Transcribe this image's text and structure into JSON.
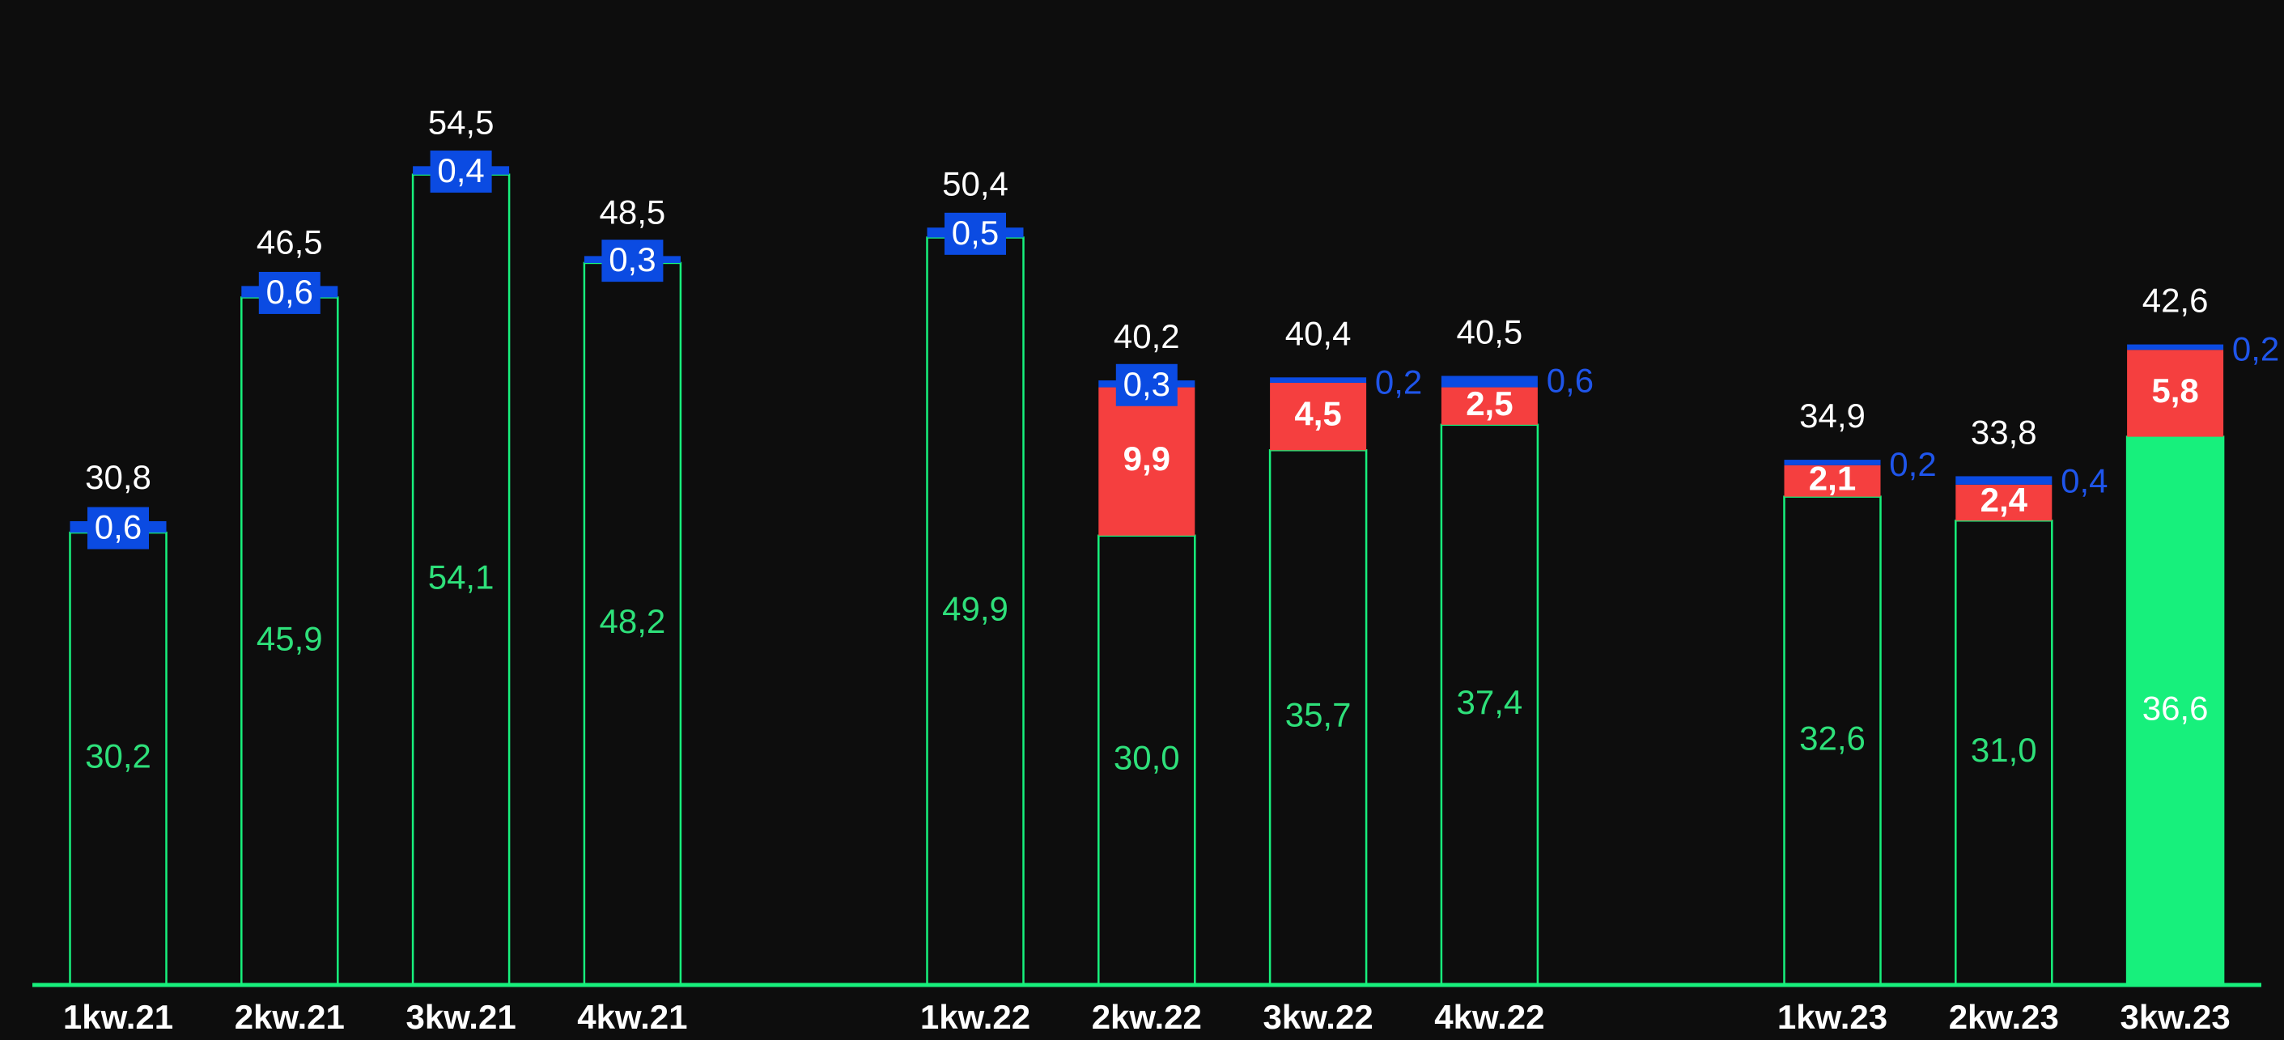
{
  "chart_data": {
    "type": "bar",
    "stacked": true,
    "categories": [
      "1kw.21",
      "2kw.21",
      "3kw.21",
      "4kw.21",
      null,
      "1kw.22",
      "2kw.22",
      "3kw.22",
      "4kw.22",
      null,
      "1kw.23",
      "2kw.23",
      "3kw.23"
    ],
    "series": [
      {
        "color": "#17f07c",
        "values": [
          30.2,
          45.9,
          54.1,
          48.2,
          null,
          49.9,
          30.0,
          35.7,
          37.4,
          null,
          32.6,
          31.0,
          36.6
        ],
        "value_labels": [
          "30,2",
          "45,9",
          "54,1",
          "48,2",
          null,
          "49,9",
          "30,0",
          "35,7",
          "37,4",
          null,
          "32,6",
          "31,0",
          "36,6"
        ]
      },
      {
        "color": "#f53f3f",
        "values": [
          null,
          null,
          null,
          null,
          null,
          null,
          9.9,
          4.5,
          2.5,
          null,
          2.1,
          2.4,
          5.8
        ],
        "value_labels": [
          null,
          null,
          null,
          null,
          null,
          null,
          "9,9",
          "4,5",
          "2,5",
          null,
          "2,1",
          "2,4",
          "5,8"
        ]
      },
      {
        "color": "#0b4be2",
        "values": [
          0.6,
          0.6,
          0.4,
          0.3,
          null,
          0.5,
          0.3,
          0.2,
          0.6,
          null,
          0.2,
          0.4,
          0.2
        ],
        "value_labels": [
          "0,6",
          "0,6",
          "0,4",
          "0,3",
          null,
          "0,5",
          "0,3",
          "0,2",
          "0,6",
          null,
          "0,2",
          "0,4",
          "0,2"
        ]
      }
    ],
    "totals": [
      30.8,
      46.5,
      54.5,
      48.5,
      null,
      50.4,
      40.2,
      40.4,
      40.5,
      null,
      34.9,
      33.8,
      42.6
    ],
    "total_labels": [
      "30,8",
      "46,5",
      "54,5",
      "48,5",
      null,
      "50,4",
      "40,2",
      "40,4",
      "40,5",
      null,
      "34,9",
      "33,8",
      "42,6"
    ],
    "ylim": [
      0,
      65
    ]
  }
}
